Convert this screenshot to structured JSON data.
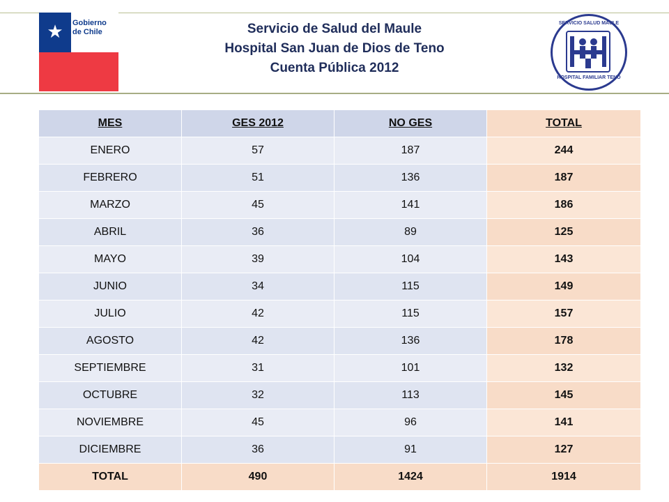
{
  "header": {
    "gov_logo_text": "Gobierno de Chile",
    "title_lines": [
      "Servicio de Salud del Maule",
      "Hospital San Juan de Dios de Teno",
      "Cuenta Pública 2012"
    ],
    "seal_top_text": "SERVICIO SALUD MAULE",
    "seal_bottom_text": "HOSPITAL FAMILIAR TENO"
  },
  "table": {
    "headers": [
      "MES",
      "GES 2012",
      "NO GES",
      "TOTAL"
    ],
    "rows": [
      [
        "ENERO",
        "57",
        "187",
        "244"
      ],
      [
        "FEBRERO",
        "51",
        "136",
        "187"
      ],
      [
        "MARZO",
        "45",
        "141",
        "186"
      ],
      [
        "ABRIL",
        "36",
        "89",
        "125"
      ],
      [
        "MAYO",
        "39",
        "104",
        "143"
      ],
      [
        "JUNIO",
        "34",
        "115",
        "149"
      ],
      [
        "JULIO",
        "42",
        "115",
        "157"
      ],
      [
        "AGOSTO",
        "42",
        "136",
        "178"
      ],
      [
        "SEPTIEMBRE",
        "31",
        "101",
        "132"
      ],
      [
        "OCTUBRE",
        "32",
        "113",
        "145"
      ],
      [
        "NOVIEMBRE",
        "45",
        "96",
        "141"
      ],
      [
        "DICIEMBRE",
        "36",
        "91",
        "127"
      ]
    ],
    "total_row": [
      "TOTAL",
      "490",
      "1424",
      "1914"
    ]
  },
  "colors": {
    "header_blue": "#cfd6e9",
    "row_blue_light": "#e9ecf5",
    "row_blue": "#dfe4f1",
    "peach": "#f8dcc8",
    "peach_light": "#fbe6d6",
    "title_navy": "#1f2d5a"
  }
}
